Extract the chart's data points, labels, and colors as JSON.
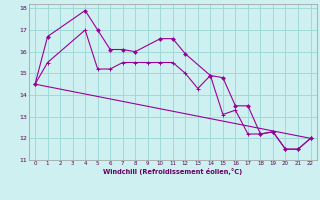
{
  "xlabel": "Windchill (Refroidissement éolien,°C)",
  "bg_color": "#cff0f0",
  "grid_color": "#a0d8d8",
  "line_color": "#990099",
  "xlim": [
    -0.5,
    22.5
  ],
  "ylim": [
    11,
    18.2
  ],
  "yticks": [
    11,
    12,
    13,
    14,
    15,
    16,
    17,
    18
  ],
  "xticks": [
    0,
    1,
    2,
    3,
    4,
    5,
    6,
    7,
    8,
    9,
    10,
    11,
    12,
    13,
    14,
    15,
    16,
    17,
    18,
    19,
    20,
    21,
    22
  ],
  "series1_x": [
    0,
    1,
    4,
    5,
    6,
    7,
    8,
    10,
    11,
    12,
    14,
    15,
    16,
    17,
    18,
    19,
    20,
    21,
    22
  ],
  "series1_y": [
    14.5,
    16.7,
    17.9,
    17.0,
    16.1,
    16.1,
    16.0,
    16.6,
    16.6,
    15.9,
    14.9,
    14.8,
    13.5,
    13.5,
    12.2,
    12.3,
    11.5,
    11.5,
    12.0
  ],
  "series2_x": [
    0,
    1,
    4,
    5,
    6,
    7,
    8,
    9,
    10,
    11,
    12,
    13,
    14,
    15,
    16,
    17,
    18,
    19,
    20,
    21,
    22
  ],
  "series2_y": [
    14.5,
    15.5,
    17.0,
    15.2,
    15.2,
    15.5,
    15.5,
    15.5,
    15.5,
    15.5,
    15.0,
    14.3,
    14.9,
    13.1,
    13.3,
    12.2,
    12.2,
    12.3,
    11.5,
    11.5,
    12.0
  ],
  "series3_x": [
    0,
    22
  ],
  "series3_y": [
    14.5,
    12.0
  ]
}
